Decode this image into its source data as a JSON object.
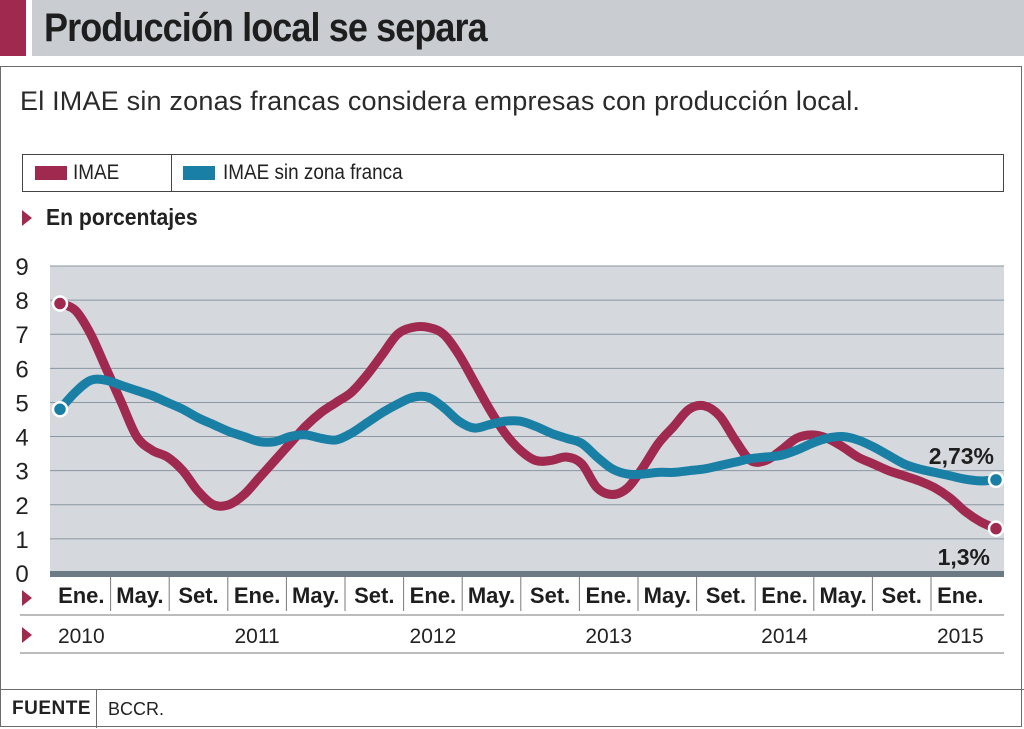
{
  "header": {
    "title": "Producción local se separa"
  },
  "subtitle": "El IMAE sin zonas francas considera empresas con producción local.",
  "units": "En porcentajes",
  "legend": [
    {
      "label": "IMAE",
      "color": "#a0294f"
    },
    {
      "label": "IMAE sin zona franca",
      "color": "#1a7fa5"
    }
  ],
  "source": {
    "label": "FUENTE",
    "value": "BCCR."
  },
  "colors": {
    "accent": "#a0294f",
    "imae": "#a0294f",
    "sin_zona_franca": "#1a7fa5",
    "plot_bg": "#d5d9de",
    "axis_bar": "#6b7a85"
  },
  "chart_data": {
    "type": "line",
    "title": "Producción local se separa",
    "subtitle": "El IMAE sin zonas francas considera empresas con producción local.",
    "ylabel": "En porcentajes",
    "ylim": [
      0,
      9
    ],
    "yticks": [
      0,
      1,
      2,
      3,
      4,
      5,
      6,
      7,
      8,
      9
    ],
    "grid": true,
    "legend_position": "top",
    "month_ticks": [
      "Ene.",
      "May.",
      "Set.",
      "Ene.",
      "May.",
      "Set.",
      "Ene.",
      "May.",
      "Set.",
      "Ene.",
      "May.",
      "Set.",
      "Ene.",
      "May.",
      "Set.",
      "Ene."
    ],
    "year_ticks": [
      "2010",
      "2011",
      "2012",
      "2013",
      "2014",
      "2015"
    ],
    "x": [
      "2010-01",
      "2010-02",
      "2010-03",
      "2010-04",
      "2010-05",
      "2010-06",
      "2010-07",
      "2010-08",
      "2010-09",
      "2010-10",
      "2010-11",
      "2010-12",
      "2011-01",
      "2011-02",
      "2011-03",
      "2011-04",
      "2011-05",
      "2011-06",
      "2011-07",
      "2011-08",
      "2011-09",
      "2011-10",
      "2011-11",
      "2011-12",
      "2012-01",
      "2012-02",
      "2012-03",
      "2012-04",
      "2012-05",
      "2012-06",
      "2012-07",
      "2012-08",
      "2012-09",
      "2012-10",
      "2012-11",
      "2012-12",
      "2013-01",
      "2013-02",
      "2013-03",
      "2013-04",
      "2013-05",
      "2013-06",
      "2013-07",
      "2013-08",
      "2013-09",
      "2013-10",
      "2013-11",
      "2013-12",
      "2014-01",
      "2014-02",
      "2014-03",
      "2014-04",
      "2014-05",
      "2014-06",
      "2014-07",
      "2014-08",
      "2014-09",
      "2014-10",
      "2014-11",
      "2014-12",
      "2015-01",
      "2015-02"
    ],
    "series": [
      {
        "name": "IMAE",
        "color": "#a0294f",
        "values": [
          7.9,
          7.7,
          7.0,
          6.0,
          5.0,
          4.0,
          3.6,
          3.4,
          3.0,
          2.4,
          2.0,
          2.0,
          2.3,
          2.8,
          3.3,
          3.8,
          4.3,
          4.7,
          5.0,
          5.3,
          5.8,
          6.4,
          7.0,
          7.2,
          7.2,
          7.0,
          6.4,
          5.6,
          4.8,
          4.1,
          3.6,
          3.3,
          3.3,
          3.4,
          3.2,
          2.5,
          2.3,
          2.5,
          3.1,
          3.8,
          4.3,
          4.8,
          4.9,
          4.6,
          3.9,
          3.3,
          3.3,
          3.6,
          3.95,
          4.05,
          3.95,
          3.7,
          3.4,
          3.2,
          3.0,
          2.85,
          2.7,
          2.5,
          2.2,
          1.8,
          1.5,
          1.3
        ]
      },
      {
        "name": "IMAE sin zona franca",
        "color": "#1a7fa5",
        "values": [
          4.8,
          5.3,
          5.65,
          5.65,
          5.5,
          5.35,
          5.2,
          5.0,
          4.8,
          4.55,
          4.35,
          4.15,
          4.0,
          3.85,
          3.85,
          4.0,
          4.05,
          3.95,
          3.9,
          4.1,
          4.4,
          4.7,
          4.95,
          5.15,
          5.15,
          4.85,
          4.45,
          4.25,
          4.35,
          4.45,
          4.45,
          4.3,
          4.1,
          3.95,
          3.8,
          3.4,
          3.05,
          2.9,
          2.9,
          2.95,
          2.95,
          3.0,
          3.05,
          3.15,
          3.25,
          3.35,
          3.4,
          3.45,
          3.6,
          3.8,
          3.95,
          4.0,
          3.9,
          3.7,
          3.45,
          3.2,
          3.05,
          2.95,
          2.85,
          2.75,
          2.7,
          2.73
        ]
      }
    ],
    "annotations": [
      {
        "text": "2,73%",
        "series": "IMAE sin zona franca",
        "x": "2015-02",
        "y": 2.73
      },
      {
        "text": "1,3%",
        "series": "IMAE",
        "x": "2015-02",
        "y": 1.3
      }
    ]
  }
}
